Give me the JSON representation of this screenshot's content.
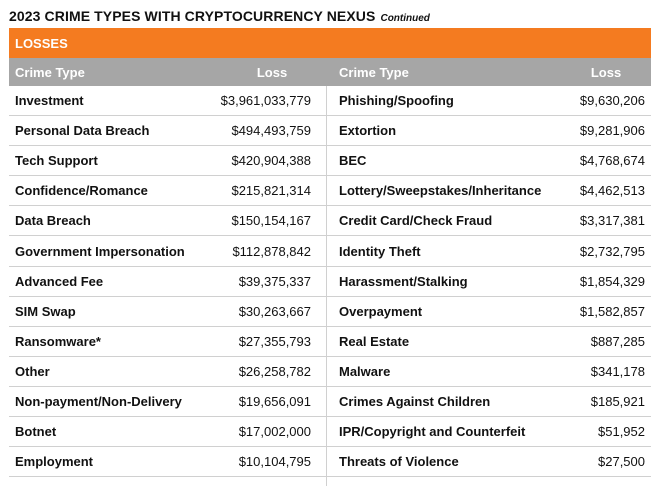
{
  "title": "2023 CRIME TYPES WITH CRYPTOCURRENCY NEXUS",
  "title_suffix": "Continued",
  "section": "LOSSES",
  "headers": {
    "crime_type_left": "Crime Type",
    "loss_left": "Loss",
    "crime_type_right": "Crime Type",
    "loss_right": "Loss"
  },
  "rows": [
    {
      "left_type": "Investment",
      "left_loss": "$3,961,033,779",
      "right_type": "Phishing/Spoofing",
      "right_loss": "$9,630,206"
    },
    {
      "left_type": "Personal Data Breach",
      "left_loss": "$494,493,759",
      "right_type": "Extortion",
      "right_loss": "$9,281,906"
    },
    {
      "left_type": "Tech Support",
      "left_loss": "$420,904,388",
      "right_type": "BEC",
      "right_loss": "$4,768,674"
    },
    {
      "left_type": "Confidence/Romance",
      "left_loss": "$215,821,314",
      "right_type": "Lottery/Sweepstakes/Inheritance",
      "right_loss": "$4,462,513"
    },
    {
      "left_type": "Data Breach",
      "left_loss": "$150,154,167",
      "right_type": "Credit Card/Check Fraud",
      "right_loss": "$3,317,381"
    },
    {
      "left_type": "Government Impersonation",
      "left_loss": "$112,878,842",
      "right_type": "Identity Theft",
      "right_loss": "$2,732,795"
    },
    {
      "left_type": "Advanced Fee",
      "left_loss": "$39,375,337",
      "right_type": "Harassment/Stalking",
      "right_loss": "$1,854,329"
    },
    {
      "left_type": "SIM Swap",
      "left_loss": "$30,263,667",
      "right_type": "Overpayment",
      "right_loss": "$1,582,857"
    },
    {
      "left_type": "Ransomware*",
      "left_loss": "$27,355,793",
      "right_type": "Real Estate",
      "right_loss": "$887,285"
    },
    {
      "left_type": "Other",
      "left_loss": "$26,258,782",
      "right_type": "Malware",
      "right_loss": "$341,178"
    },
    {
      "left_type": "Non-payment/Non-Delivery",
      "left_loss": "$19,656,091",
      "right_type": "Crimes Against Children",
      "right_loss": "$185,921"
    },
    {
      "left_type": "Botnet",
      "left_loss": "$17,002,000",
      "right_type": "IPR/Copyright and Counterfeit",
      "right_loss": "$51,952"
    },
    {
      "left_type": "Employment",
      "left_loss": "$10,104,795",
      "right_type": "Threats of Violence",
      "right_loss": "$27,500"
    }
  ],
  "colors": {
    "band": "#f47b20",
    "header": "#a6a6a6"
  }
}
